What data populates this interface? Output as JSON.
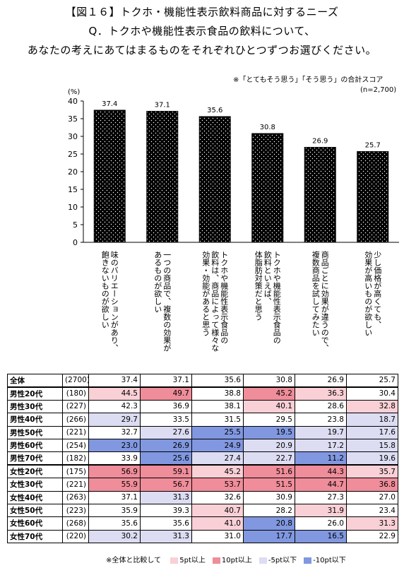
{
  "header": {
    "title": "【図１６】トクホ・機能性表示飲料商品に対するニーズ",
    "question_line1": "Q．トクホや機能性表示食品の飲料について、",
    "question_line2": "あなたの考えにあてはまるものをそれぞれひとつずつお選びください。",
    "score_note": "※「とてもそう思う」「そう思う」の合計スコア",
    "sample_note": "(n=2,700)"
  },
  "chart_data": {
    "type": "bar",
    "ylabel": "(%)",
    "ylim": [
      0,
      40
    ],
    "yticks": [
      "0",
      "5",
      "10",
      "15",
      "20",
      "25",
      "30",
      "35",
      "40"
    ],
    "categories": [
      "味のバリエーションがあり、飽きないものが欲しい",
      "一つの商品で、複数の効果があるものが欲しい",
      "トクホや機能性表示食品の飲料は、商品によって様々な効果・効能があると思う",
      "トクホや機能性表示食品の飲料といえば、体脂肪対策だと思う",
      "商品ごとに効果が違うので、複数商品を試してみたい",
      "少し価格が高くても、効果が高いものが欲しい"
    ],
    "category_lines": [
      [
        "味のバリエーションがあり、",
        "飽きないものが欲しい"
      ],
      [
        "一つの商品で、複数の効果が",
        "あるものが欲しい"
      ],
      [
        "トクホや機能性表示食品の",
        "飲料は、商品によって様々な",
        "効果・効能があると思う"
      ],
      [
        "トクホや機能性表示食品の",
        "飲料といえば、",
        "体脂肪対策だと思う"
      ],
      [
        "商品ごとに効果が違うので、",
        "複数商品を試してみたい"
      ],
      [
        "少し価格が高くても、",
        "効果が高いものが欲しい"
      ]
    ],
    "values": [
      37.4,
      37.1,
      35.6,
      30.8,
      26.9,
      25.7
    ],
    "value_labels": [
      "37.4",
      "37.1",
      "35.6",
      "30.8",
      "26.9",
      "25.7"
    ],
    "bar_fill": "#000000"
  },
  "table": {
    "rows": [
      {
        "label": "全体",
        "n": "(2700)",
        "values": [
          "37.4",
          "37.1",
          "35.6",
          "30.8",
          "26.9",
          "25.7"
        ],
        "tags": [
          "",
          "",
          "",
          "",
          "",
          ""
        ]
      },
      {
        "label": "男性20代",
        "n": "(180)",
        "values": [
          "44.5",
          "49.7",
          "38.8",
          "45.2",
          "36.3",
          "30.4"
        ],
        "tags": [
          "p5",
          "p10",
          "",
          "p10",
          "p5",
          ""
        ]
      },
      {
        "label": "男性30代",
        "n": "(227)",
        "values": [
          "42.3",
          "36.9",
          "38.1",
          "40.1",
          "28.6",
          "32.8"
        ],
        "tags": [
          "",
          "",
          "",
          "p5",
          "",
          "p5"
        ]
      },
      {
        "label": "男性40代",
        "n": "(266)",
        "values": [
          "29.7",
          "33.5",
          "31.5",
          "29.5",
          "23.8",
          "18.7"
        ],
        "tags": [
          "m5",
          "",
          "",
          "",
          "",
          "m5"
        ]
      },
      {
        "label": "男性50代",
        "n": "(221)",
        "values": [
          "32.7",
          "27.6",
          "25.5",
          "19.5",
          "19.7",
          "17.6"
        ],
        "tags": [
          "",
          "m5",
          "m10",
          "m10",
          "m5",
          "m5"
        ]
      },
      {
        "label": "男性60代",
        "n": "(254)",
        "values": [
          "23.0",
          "26.9",
          "24.9",
          "20.9",
          "17.2",
          "15.8"
        ],
        "tags": [
          "m10",
          "m10",
          "m10",
          "m5",
          "m5",
          "m5"
        ]
      },
      {
        "label": "男性70代",
        "n": "(182)",
        "values": [
          "33.9",
          "25.6",
          "27.4",
          "22.7",
          "11.2",
          "19.6"
        ],
        "tags": [
          "",
          "m10",
          "m5",
          "m5",
          "m10",
          "m5"
        ]
      },
      {
        "label": "女性20代",
        "n": "(175)",
        "values": [
          "56.9",
          "59.1",
          "45.2",
          "51.6",
          "44.3",
          "35.7"
        ],
        "tags": [
          "p10",
          "p10",
          "p5",
          "p10",
          "p10",
          "p5"
        ]
      },
      {
        "label": "女性30代",
        "n": "(221)",
        "values": [
          "55.9",
          "56.7",
          "53.7",
          "51.5",
          "44.7",
          "36.8"
        ],
        "tags": [
          "p10",
          "p10",
          "p10",
          "p10",
          "p10",
          "p10"
        ]
      },
      {
        "label": "女性40代",
        "n": "(263)",
        "values": [
          "37.1",
          "31.3",
          "32.6",
          "30.9",
          "27.3",
          "27.0"
        ],
        "tags": [
          "",
          "m5",
          "",
          "",
          "",
          ""
        ]
      },
      {
        "label": "女性50代",
        "n": "(223)",
        "values": [
          "35.9",
          "39.3",
          "40.7",
          "28.2",
          "31.9",
          "23.4"
        ],
        "tags": [
          "",
          "",
          "p5",
          "",
          "p5",
          ""
        ]
      },
      {
        "label": "女性60代",
        "n": "(268)",
        "values": [
          "35.6",
          "35.6",
          "41.0",
          "20.8",
          "26.0",
          "31.3"
        ],
        "tags": [
          "",
          "",
          "p5",
          "m10",
          "",
          "p5"
        ]
      },
      {
        "label": "女性70代",
        "n": "(220)",
        "values": [
          "30.2",
          "31.3",
          "31.0",
          "17.7",
          "16.5",
          "22.9"
        ],
        "tags": [
          "m5",
          "m5",
          "",
          "m10",
          "m10",
          ""
        ]
      }
    ]
  },
  "legend": {
    "prefix": "※全体と比較して",
    "items": [
      {
        "key": "p5",
        "label": "5pt以上",
        "color": "#f9d0d6"
      },
      {
        "key": "p10",
        "label": "10pt以上",
        "color": "#ef8d9a"
      },
      {
        "key": "m5",
        "label": "-5pt以下",
        "color": "#dcdcf2"
      },
      {
        "key": "m10",
        "label": "-10pt以下",
        "color": "#8197e0"
      }
    ]
  }
}
